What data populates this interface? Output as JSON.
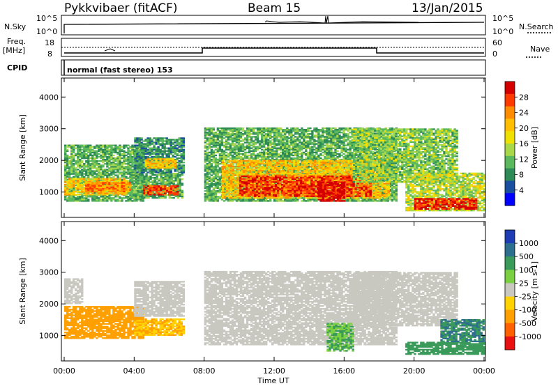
{
  "header": {
    "station": "Pykkvibaer (fitACF)",
    "beam": "Beam 15",
    "date": "13/Jan/2015"
  },
  "top_panels": {
    "nsky_label": "N.Sky",
    "nsky_ticks": [
      "10^5",
      "10^0"
    ],
    "nsearch_label": "N.Search",
    "nsearch_ticks": [
      "10^5",
      "10^0"
    ],
    "freq_label_1": "Freq.",
    "freq_label_2": "[MHz]",
    "freq_ticks": [
      "18",
      "8"
    ],
    "nave_label": "Nave",
    "nave_ticks": [
      "60",
      "0"
    ],
    "cpid_label": "CPID",
    "cpid_text": "normal (fast stereo) 153"
  },
  "time_axis": {
    "label": "Time UT",
    "ticks": [
      "00:00",
      "04:00",
      "08:00",
      "12:00",
      "16:00",
      "20:00",
      "00:00"
    ]
  },
  "power_colorbar": {
    "label": "Power [dB]",
    "ticks": [
      "28",
      "24",
      "20",
      "16",
      "12",
      "8",
      "4"
    ],
    "colors": [
      "#d40000",
      "#ff3a00",
      "#ff8c00",
      "#ffbf00",
      "#f0e000",
      "#a8d84a",
      "#5cb85c",
      "#2e8b57",
      "#1a4fa0",
      "#0000ff"
    ]
  },
  "velocity_colorbar": {
    "label": "Velocity [m s-1]",
    "ticks": [
      "1000",
      "500",
      "100",
      "25",
      "-25",
      "-100",
      "-500",
      "-1000"
    ],
    "colors": [
      "#1e3cb4",
      "#2e6e8e",
      "#3a9a5a",
      "#7ad040",
      "#c8c8c0",
      "#ffd200",
      "#ffa000",
      "#ff6000",
      "#e81010"
    ]
  },
  "chart_data": [
    {
      "type": "heatmap",
      "name": "power",
      "ylabel": "Slant Range [km]",
      "y_ticks": [
        1000,
        2000,
        3000,
        4000
      ],
      "ylim": [
        200,
        4600
      ],
      "xlim": [
        0,
        24
      ],
      "x_unit": "hours UT",
      "bands": [
        {
          "t0": 0.0,
          "t1": 4.5,
          "r0": 700,
          "r1": 2500,
          "level": 12
        },
        {
          "t0": 0.0,
          "t1": 3.5,
          "r0": 900,
          "r1": 1400,
          "level": 20
        },
        {
          "t0": 1.2,
          "t1": 3.8,
          "r0": 1000,
          "r1": 1300,
          "level": 24
        },
        {
          "t0": 3.8,
          "t1": 6.8,
          "r0": 800,
          "r1": 1600,
          "level": 12
        },
        {
          "t0": 4.5,
          "t1": 6.5,
          "r0": 900,
          "r1": 1200,
          "level": 26
        },
        {
          "t0": 4.0,
          "t1": 6.8,
          "r0": 1600,
          "r1": 2700,
          "level": 10
        },
        {
          "t0": 4.6,
          "t1": 6.4,
          "r0": 1750,
          "r1": 2050,
          "level": 20
        },
        {
          "t0": 8.0,
          "t1": 19.0,
          "r0": 700,
          "r1": 3000,
          "level": 12
        },
        {
          "t0": 9.0,
          "t1": 18.5,
          "r0": 800,
          "r1": 2000,
          "level": 20
        },
        {
          "t0": 10.0,
          "t1": 17.5,
          "r0": 850,
          "r1": 1500,
          "level": 27
        },
        {
          "t0": 14.5,
          "t1": 16.0,
          "r0": 700,
          "r1": 1300,
          "level": 30
        },
        {
          "t0": 16.5,
          "t1": 22.5,
          "r0": 1300,
          "r1": 3000,
          "level": 14
        },
        {
          "t0": 19.5,
          "t1": 24.0,
          "r0": 400,
          "r1": 1600,
          "level": 16
        },
        {
          "t0": 20.0,
          "t1": 23.5,
          "r0": 450,
          "r1": 800,
          "level": 28
        }
      ]
    },
    {
      "type": "heatmap",
      "name": "velocity",
      "ylabel": "Slant Range [km]",
      "y_ticks": [
        1000,
        2000,
        3000,
        4000
      ],
      "ylim": [
        200,
        4600
      ],
      "xlim": [
        0,
        24
      ],
      "x_unit": "hours UT",
      "bands": [
        {
          "t0": 0.0,
          "t1": 1.0,
          "r0": 2000,
          "r1": 2800,
          "level": 0
        },
        {
          "t0": 0.0,
          "t1": 4.5,
          "r0": 900,
          "r1": 1900,
          "level": -150
        },
        {
          "t0": 4.0,
          "t1": 6.8,
          "r0": 1000,
          "r1": 1500,
          "level": -60
        },
        {
          "t0": 4.0,
          "t1": 6.8,
          "r0": 1600,
          "r1": 2700,
          "level": 0
        },
        {
          "t0": 8.0,
          "t1": 19.0,
          "r0": 700,
          "r1": 3000,
          "level": 0
        },
        {
          "t0": 15.0,
          "t1": 16.5,
          "r0": 500,
          "r1": 1400,
          "level": 60
        },
        {
          "t0": 16.5,
          "t1": 22.5,
          "r0": 1300,
          "r1": 3000,
          "level": 0
        },
        {
          "t0": 19.5,
          "t1": 24.0,
          "r0": 400,
          "r1": 800,
          "level": 150
        },
        {
          "t0": 21.5,
          "t1": 24.0,
          "r0": 800,
          "r1": 1500,
          "level": 300
        }
      ]
    }
  ]
}
